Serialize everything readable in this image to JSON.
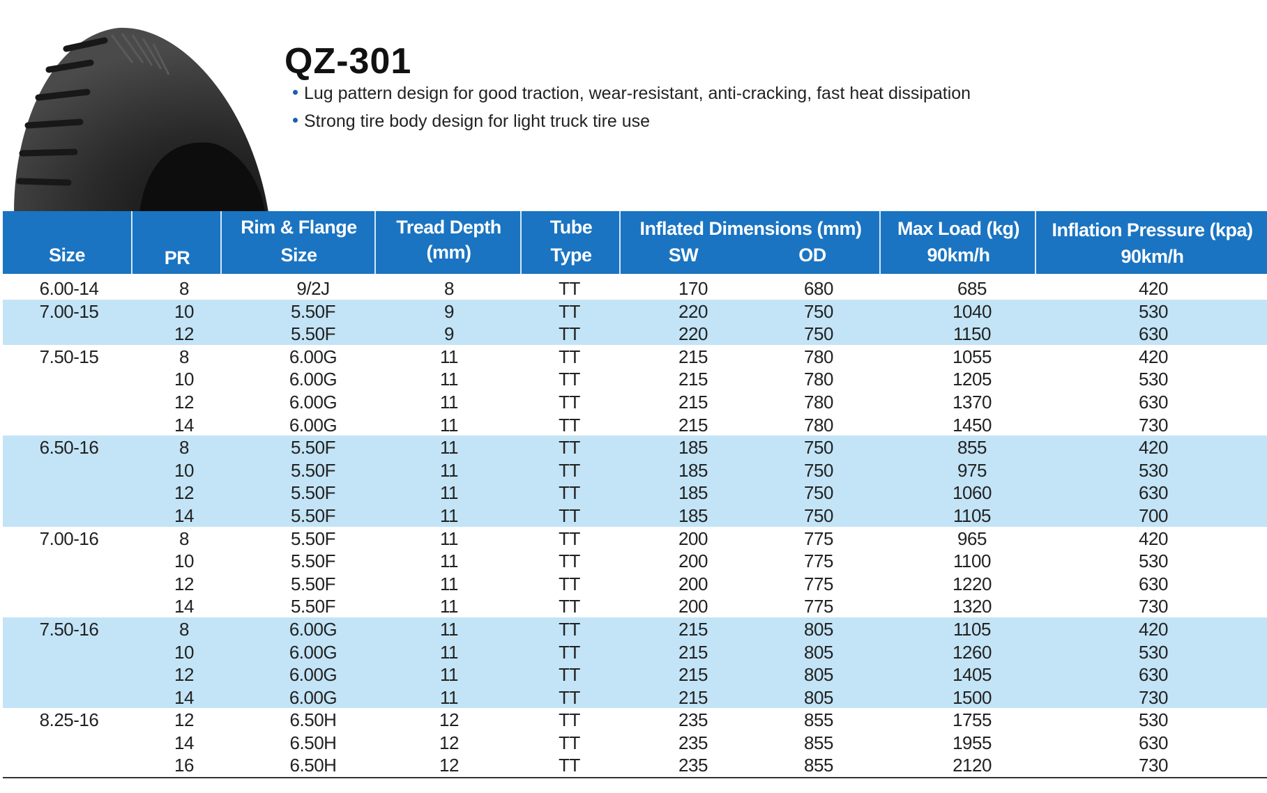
{
  "product": {
    "title": "QZ-301",
    "features": [
      "Lug pattern design for good traction, wear-resistant, anti-cracking, fast heat dissipation",
      "Strong tire body design for light truck tire use"
    ],
    "accent_color": "#1a74c1",
    "band_color": "#c3e4f6",
    "image": "tire-tread-icon"
  },
  "table": {
    "headers": {
      "size": "Size",
      "pr": "PR",
      "rim_1": "Rim & Flange",
      "rim_2": "Size",
      "tread_1": "Tread Depth",
      "tread_2": "(mm)",
      "tube_1": "Tube",
      "tube_2": "Type",
      "inflated": "Inflated Dimensions (mm)",
      "sw": "SW",
      "od": "OD",
      "load_1": "Max Load (kg)",
      "load_2": "90km/h",
      "pressure_1": "Inflation Pressure (kpa)",
      "pressure_2": "90km/h"
    },
    "rows": [
      {
        "size": "6.00-14",
        "pr": "8",
        "rim": "9/2J",
        "tread": "8",
        "tube": "TT",
        "sw": "170",
        "od": "680",
        "load": "685",
        "pressure": "420",
        "band": false
      },
      {
        "size": "7.00-15",
        "pr": "10",
        "rim": "5.50F",
        "tread": "9",
        "tube": "TT",
        "sw": "220",
        "od": "750",
        "load": "1040",
        "pressure": "530",
        "band": true
      },
      {
        "size": "",
        "pr": "12",
        "rim": "5.50F",
        "tread": "9",
        "tube": "TT",
        "sw": "220",
        "od": "750",
        "load": "1150",
        "pressure": "630",
        "band": true
      },
      {
        "size": "7.50-15",
        "pr": "8",
        "rim": "6.00G",
        "tread": "11",
        "tube": "TT",
        "sw": "215",
        "od": "780",
        "load": "1055",
        "pressure": "420",
        "band": false
      },
      {
        "size": "",
        "pr": "10",
        "rim": "6.00G",
        "tread": "11",
        "tube": "TT",
        "sw": "215",
        "od": "780",
        "load": "1205",
        "pressure": "530",
        "band": false
      },
      {
        "size": "",
        "pr": "12",
        "rim": "6.00G",
        "tread": "11",
        "tube": "TT",
        "sw": "215",
        "od": "780",
        "load": "1370",
        "pressure": "630",
        "band": false
      },
      {
        "size": "",
        "pr": "14",
        "rim": "6.00G",
        "tread": "11",
        "tube": "TT",
        "sw": "215",
        "od": "780",
        "load": "1450",
        "pressure": "730",
        "band": false
      },
      {
        "size": "6.50-16",
        "pr": "8",
        "rim": "5.50F",
        "tread": "11",
        "tube": "TT",
        "sw": "185",
        "od": "750",
        "load": "855",
        "pressure": "420",
        "band": true
      },
      {
        "size": "",
        "pr": "10",
        "rim": "5.50F",
        "tread": "11",
        "tube": "TT",
        "sw": "185",
        "od": "750",
        "load": "975",
        "pressure": "530",
        "band": true
      },
      {
        "size": "",
        "pr": "12",
        "rim": "5.50F",
        "tread": "11",
        "tube": "TT",
        "sw": "185",
        "od": "750",
        "load": "1060",
        "pressure": "630",
        "band": true
      },
      {
        "size": "",
        "pr": "14",
        "rim": "5.50F",
        "tread": "11",
        "tube": "TT",
        "sw": "185",
        "od": "750",
        "load": "1105",
        "pressure": "700",
        "band": true
      },
      {
        "size": "7.00-16",
        "pr": "8",
        "rim": "5.50F",
        "tread": "11",
        "tube": "TT",
        "sw": "200",
        "od": "775",
        "load": "965",
        "pressure": "420",
        "band": false
      },
      {
        "size": "",
        "pr": "10",
        "rim": "5.50F",
        "tread": "11",
        "tube": "TT",
        "sw": "200",
        "od": "775",
        "load": "1100",
        "pressure": "530",
        "band": false
      },
      {
        "size": "",
        "pr": "12",
        "rim": "5.50F",
        "tread": "11",
        "tube": "TT",
        "sw": "200",
        "od": "775",
        "load": "1220",
        "pressure": "630",
        "band": false
      },
      {
        "size": "",
        "pr": "14",
        "rim": "5.50F",
        "tread": "11",
        "tube": "TT",
        "sw": "200",
        "od": "775",
        "load": "1320",
        "pressure": "730",
        "band": false
      },
      {
        "size": "7.50-16",
        "pr": "8",
        "rim": "6.00G",
        "tread": "11",
        "tube": "TT",
        "sw": "215",
        "od": "805",
        "load": "1105",
        "pressure": "420",
        "band": true
      },
      {
        "size": "",
        "pr": "10",
        "rim": "6.00G",
        "tread": "11",
        "tube": "TT",
        "sw": "215",
        "od": "805",
        "load": "1260",
        "pressure": "530",
        "band": true
      },
      {
        "size": "",
        "pr": "12",
        "rim": "6.00G",
        "tread": "11",
        "tube": "TT",
        "sw": "215",
        "od": "805",
        "load": "1405",
        "pressure": "630",
        "band": true
      },
      {
        "size": "",
        "pr": "14",
        "rim": "6.00G",
        "tread": "11",
        "tube": "TT",
        "sw": "215",
        "od": "805",
        "load": "1500",
        "pressure": "730",
        "band": true
      },
      {
        "size": "8.25-16",
        "pr": "12",
        "rim": "6.50H",
        "tread": "12",
        "tube": "TT",
        "sw": "235",
        "od": "855",
        "load": "1755",
        "pressure": "530",
        "band": false
      },
      {
        "size": "",
        "pr": "14",
        "rim": "6.50H",
        "tread": "12",
        "tube": "TT",
        "sw": "235",
        "od": "855",
        "load": "1955",
        "pressure": "630",
        "band": false
      },
      {
        "size": "",
        "pr": "16",
        "rim": "6.50H",
        "tread": "12",
        "tube": "TT",
        "sw": "235",
        "od": "855",
        "load": "2120",
        "pressure": "730",
        "band": false
      }
    ]
  }
}
